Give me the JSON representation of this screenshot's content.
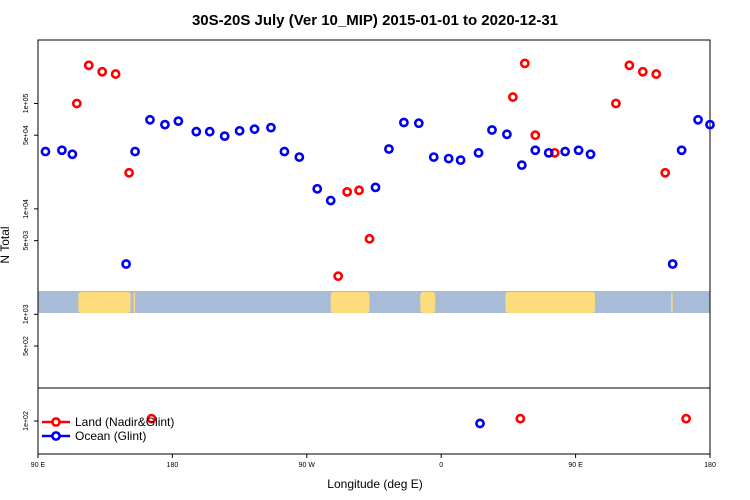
{
  "chart_data": {
    "type": "scatter",
    "title": "30S-20S July (Ver 10_MIP)   2015-01-01 to 2020-12-31",
    "xlabel": "Longitude (deg E)",
    "ylabel": "N Total",
    "x_ticks": [
      {
        "value": 90,
        "label": "90 E"
      },
      {
        "value": 180,
        "label": "180"
      },
      {
        "value": 270,
        "label": "90 W"
      },
      {
        "value": 360,
        "label": "0"
      },
      {
        "value": 450,
        "label": "90 E"
      },
      {
        "value": 540,
        "label": "180"
      }
    ],
    "xlim": [
      90,
      540
    ],
    "scale_y": "log",
    "upper_panel": {
      "ylim": [
        200,
        400000
      ],
      "y_ticks": [
        {
          "value": 500,
          "label": "5e+02"
        },
        {
          "value": 1000,
          "label": "1e+03"
        },
        {
          "value": 5000,
          "label": "5e+03"
        },
        {
          "value": 10000,
          "label": "1e+04"
        },
        {
          "value": 50000,
          "label": "5e+04"
        },
        {
          "value": 100000,
          "label": "1e+05"
        }
      ],
      "land_mask": {
        "latitude_band": "30S-20S",
        "ocean_color": "#a8bcd8",
        "land_color": "#fcdc7c",
        "land_segments": [
          [
            117,
            152
          ],
          [
            154,
            155
          ],
          [
            286,
            312
          ],
          [
            346,
            356
          ],
          [
            403,
            463
          ],
          [
            514,
            515
          ]
        ]
      }
    },
    "lower_panel": {
      "ylim": [
        50,
        200
      ],
      "y_ticks": [
        {
          "value": 100,
          "label": "1e+02"
        }
      ]
    },
    "series": [
      {
        "name": "Land (Nadir&Glint)",
        "color": "#ff0000",
        "panel": "upper",
        "points": [
          {
            "x": 116,
            "y": 100000
          },
          {
            "x": 124,
            "y": 230000
          },
          {
            "x": 133,
            "y": 200000
          },
          {
            "x": 142,
            "y": 190000
          },
          {
            "x": 151,
            "y": 22000
          },
          {
            "x": 291,
            "y": 2300
          },
          {
            "x": 297,
            "y": 14500
          },
          {
            "x": 305,
            "y": 15000
          },
          {
            "x": 312,
            "y": 5200
          },
          {
            "x": 408,
            "y": 115000
          },
          {
            "x": 416,
            "y": 240000
          },
          {
            "x": 423,
            "y": 50000
          },
          {
            "x": 436,
            "y": 34000
          },
          {
            "x": 477,
            "y": 100000
          },
          {
            "x": 486,
            "y": 230000
          },
          {
            "x": 495,
            "y": 200000
          },
          {
            "x": 504,
            "y": 190000
          },
          {
            "x": 510,
            "y": 22000
          }
        ]
      },
      {
        "name": "Ocean (Glint)",
        "color": "#0000ee",
        "panel": "upper",
        "points": [
          {
            "x": 95,
            "y": 35000
          },
          {
            "x": 106,
            "y": 36000
          },
          {
            "x": 113,
            "y": 33000
          },
          {
            "x": 149,
            "y": 3000
          },
          {
            "x": 155,
            "y": 35000
          },
          {
            "x": 165,
            "y": 70000
          },
          {
            "x": 175,
            "y": 63000
          },
          {
            "x": 184,
            "y": 68000
          },
          {
            "x": 196,
            "y": 54000
          },
          {
            "x": 205,
            "y": 54000
          },
          {
            "x": 215,
            "y": 49000
          },
          {
            "x": 225,
            "y": 55000
          },
          {
            "x": 235,
            "y": 57000
          },
          {
            "x": 246,
            "y": 59000
          },
          {
            "x": 255,
            "y": 35000
          },
          {
            "x": 265,
            "y": 31000
          },
          {
            "x": 277,
            "y": 15500
          },
          {
            "x": 286,
            "y": 12000
          },
          {
            "x": 316,
            "y": 16000
          },
          {
            "x": 325,
            "y": 37000
          },
          {
            "x": 335,
            "y": 66000
          },
          {
            "x": 345,
            "y": 65000
          },
          {
            "x": 355,
            "y": 31000
          },
          {
            "x": 365,
            "y": 30000
          },
          {
            "x": 373,
            "y": 29000
          },
          {
            "x": 385,
            "y": 34000
          },
          {
            "x": 394,
            "y": 56000
          },
          {
            "x": 404,
            "y": 51000
          },
          {
            "x": 414,
            "y": 26000
          },
          {
            "x": 423,
            "y": 36000
          },
          {
            "x": 432,
            "y": 34000
          },
          {
            "x": 443,
            "y": 35000
          },
          {
            "x": 452,
            "y": 36000
          },
          {
            "x": 460,
            "y": 33000
          },
          {
            "x": 515,
            "y": 3000
          },
          {
            "x": 521,
            "y": 36000
          },
          {
            "x": 532,
            "y": 70000
          },
          {
            "x": 540,
            "y": 63000
          }
        ]
      },
      {
        "name": "Land (Nadir&Glint) - lower",
        "color": "#ff0000",
        "panel": "lower",
        "points": [
          {
            "x": 166,
            "y": 105
          },
          {
            "x": 413,
            "y": 105
          },
          {
            "x": 524,
            "y": 105
          }
        ]
      },
      {
        "name": "Ocean (Glint) - lower",
        "color": "#0000ee",
        "panel": "lower",
        "points": [
          {
            "x": 386,
            "y": 95
          }
        ]
      }
    ],
    "legend": {
      "placement": "bottom-left",
      "entries": [
        {
          "label": "Land (Nadir&Glint)",
          "color": "#ff0000"
        },
        {
          "label": "Ocean (Glint)",
          "color": "#0000ee"
        }
      ]
    }
  }
}
